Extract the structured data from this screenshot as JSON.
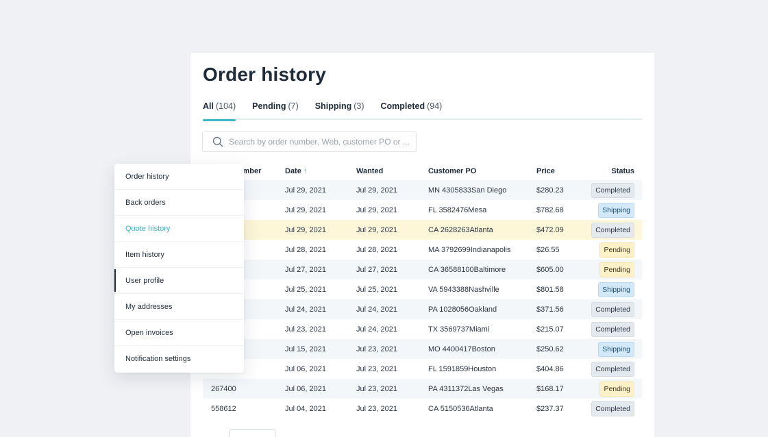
{
  "page": {
    "title": "Order history"
  },
  "tabs": [
    {
      "label": "All",
      "count": "(104)"
    },
    {
      "label": "Pending",
      "count": "(7)"
    },
    {
      "label": "Shipping",
      "count": "(3)"
    },
    {
      "label": "Completed",
      "count": "(94)"
    }
  ],
  "search": {
    "placeholder": "Search by order number, Web, customer PO or ..."
  },
  "table": {
    "columns": {
      "number": "Order number",
      "date": "Date",
      "sort_indicator": "↑",
      "wanted": "Wanted",
      "po": "Customer PO",
      "price": "Price",
      "status": "Status"
    },
    "rows": [
      {
        "number": "",
        "date": "Jul 29, 2021",
        "wanted": "Jul 29, 2021",
        "po": "MN 4305833San Diego",
        "price": "$280.23",
        "status": "Completed"
      },
      {
        "number": "",
        "date": "Jul 29, 2021",
        "wanted": "Jul 29, 2021",
        "po": "FL 3582476Mesa",
        "price": "$782.68",
        "status": "Shipping"
      },
      {
        "number": "",
        "date": "Jul 29, 2021",
        "wanted": "Jul 29, 2021",
        "po": "CA 2628263Atlanta",
        "price": "$472.09",
        "status": "Completed"
      },
      {
        "number": "",
        "date": "Jul 28, 2021",
        "wanted": "Jul 28, 2021",
        "po": "MA 3792699Indianapolis",
        "price": "$26.55",
        "status": "Pending"
      },
      {
        "number": "",
        "date": "Jul 27, 2021",
        "wanted": "Jul 27, 2021",
        "po": "CA 36588100Baltimore",
        "price": "$605.00",
        "status": "Pending"
      },
      {
        "number": "",
        "date": "Jul 25, 2021",
        "wanted": "Jul 25, 2021",
        "po": "VA 5943388Nashville",
        "price": "$801.58",
        "status": "Shipping"
      },
      {
        "number": "",
        "date": "Jul 24, 2021",
        "wanted": "Jul 24, 2021",
        "po": "PA 1028056Oakland",
        "price": "$371.56",
        "status": "Completed"
      },
      {
        "number": "",
        "date": "Jul 23, 2021",
        "wanted": "Jul 24, 2021",
        "po": "TX 3569737Miami",
        "price": "$215.07",
        "status": "Completed"
      },
      {
        "number": "",
        "date": "Jul 15, 2021",
        "wanted": "Jul 23, 2021",
        "po": "MO 4400417Boston",
        "price": "$250.62",
        "status": "Shipping"
      },
      {
        "number": "",
        "date": "Jul 06, 2021",
        "wanted": "Jul 23, 2021",
        "po": "FL 1591859Houston",
        "price": "$404.86",
        "status": "Completed"
      },
      {
        "number": "267400",
        "date": "Jul 06, 2021",
        "wanted": "Jul 23, 2021",
        "po": "PA 4311372Las Vegas",
        "price": "$168.17",
        "status": "Pending"
      },
      {
        "number": "558612",
        "date": "Jul 04, 2021",
        "wanted": "Jul 23, 2021",
        "po": "CA 5150536Atlanta",
        "price": "$237.37",
        "status": "Completed"
      }
    ]
  },
  "menu": {
    "items": [
      {
        "label": "Order history"
      },
      {
        "label": "Back orders"
      },
      {
        "label": "Quote history"
      },
      {
        "label": "Item history"
      },
      {
        "label": "User profile"
      },
      {
        "label": "My addresses"
      },
      {
        "label": "Open invoices"
      },
      {
        "label": "Notification settings"
      }
    ]
  },
  "colors": {
    "accent": "#3bb6c8",
    "background": "#f0f1f4",
    "highlight_row": "#fdf6d8",
    "status_completed": "#e4e9ee",
    "status_shipping": "#d3e9f9",
    "status_pending": "#fdf2c7"
  }
}
